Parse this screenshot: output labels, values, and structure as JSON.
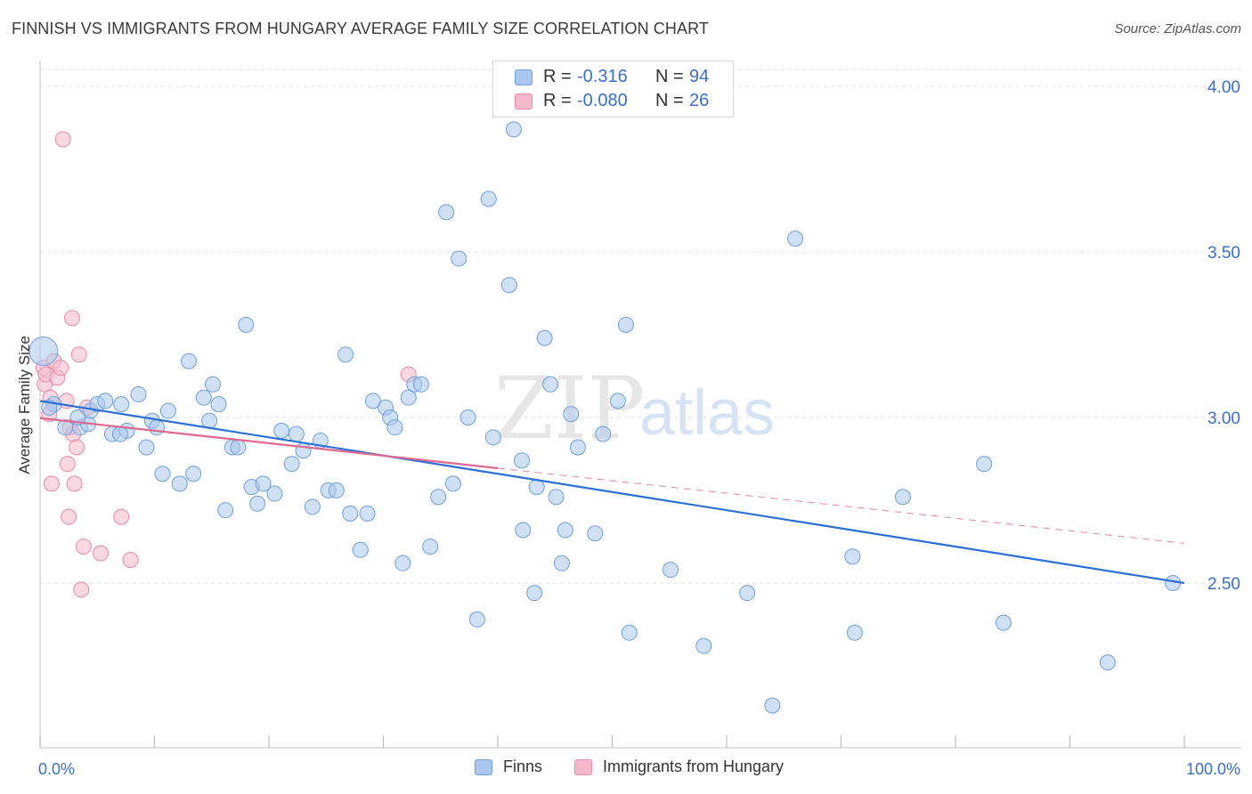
{
  "title": "FINNISH VS IMMIGRANTS FROM HUNGARY AVERAGE FAMILY SIZE CORRELATION CHART",
  "source": "Source: ZipAtlas.com",
  "watermark": {
    "zip": "ZIP",
    "atlas": "atlas"
  },
  "colors": {
    "finns_fill": "#aac8ef",
    "finns_stroke": "#6f9fdc",
    "finns_line": "#2a6fd6",
    "hungary_fill": "#f6b8cb",
    "hungary_stroke": "#e88aa8",
    "hungary_line": "#e0688f",
    "axis_text": "#3b6fc4",
    "grid": "#dedede"
  },
  "legend": {
    "r_label": "R =",
    "n_label": "N =",
    "entries": [
      {
        "name": "Finns",
        "r": "-0.316",
        "n": "94"
      },
      {
        "name": "Immigrants from Hungary",
        "r": "-0.080",
        "n": "26"
      }
    ]
  },
  "chart_data": {
    "type": "scatter",
    "title": "FINNISH VS IMMIGRANTS FROM HUNGARY AVERAGE FAMILY SIZE CORRELATION CHART",
    "xlabel": "",
    "ylabel": "Average Family Size",
    "xlim": [
      0,
      100
    ],
    "ylim": [
      2.03,
      4.07
    ],
    "x_tick_labels": [
      {
        "value": 0,
        "label": "0.0%"
      },
      {
        "value": 100,
        "label": "100.0%"
      }
    ],
    "y_ticks": [
      {
        "value": 2.5,
        "label": "2.50"
      },
      {
        "value": 3.0,
        "label": "3.00"
      },
      {
        "value": 3.5,
        "label": "3.50"
      },
      {
        "value": 4.0,
        "label": "4.00"
      }
    ],
    "grid": true,
    "legend_position": "top-center",
    "series": [
      {
        "name": "Finns",
        "trend": {
          "x": [
            0,
            100
          ],
          "y": [
            3.05,
            2.5
          ],
          "dashed_from": null
        },
        "points": [
          [
            0.3,
            3.2
          ],
          [
            1.2,
            3.04
          ],
          [
            2.2,
            2.97
          ],
          [
            3.5,
            2.97
          ],
          [
            4.2,
            2.98
          ],
          [
            4.4,
            3.02
          ],
          [
            5.0,
            3.04
          ],
          [
            6.3,
            2.95
          ],
          [
            5.7,
            3.05
          ],
          [
            7.1,
            3.04
          ],
          [
            8.6,
            3.07
          ],
          [
            7.6,
            2.96
          ],
          [
            9.3,
            2.91
          ],
          [
            9.8,
            2.99
          ],
          [
            10.2,
            2.97
          ],
          [
            10.7,
            2.83
          ],
          [
            11.2,
            3.02
          ],
          [
            12.2,
            2.8
          ],
          [
            13.0,
            3.17
          ],
          [
            13.4,
            2.83
          ],
          [
            14.3,
            3.06
          ],
          [
            14.8,
            2.99
          ],
          [
            15.1,
            3.1
          ],
          [
            15.6,
            3.04
          ],
          [
            16.2,
            2.72
          ],
          [
            16.8,
            2.91
          ],
          [
            17.3,
            2.91
          ],
          [
            18.0,
            3.28
          ],
          [
            18.5,
            2.79
          ],
          [
            19.0,
            2.74
          ],
          [
            19.5,
            2.8
          ],
          [
            20.5,
            2.77
          ],
          [
            21.1,
            2.96
          ],
          [
            22.0,
            2.86
          ],
          [
            22.4,
            2.95
          ],
          [
            23.0,
            2.9
          ],
          [
            23.8,
            2.73
          ],
          [
            24.5,
            2.93
          ],
          [
            25.2,
            2.78
          ],
          [
            25.9,
            2.78
          ],
          [
            26.7,
            3.19
          ],
          [
            27.1,
            2.71
          ],
          [
            28.0,
            2.6
          ],
          [
            28.6,
            2.71
          ],
          [
            29.1,
            3.05
          ],
          [
            30.2,
            3.03
          ],
          [
            30.6,
            3.0
          ],
          [
            31.0,
            2.97
          ],
          [
            31.7,
            2.56
          ],
          [
            32.2,
            3.06
          ],
          [
            32.7,
            3.1
          ],
          [
            33.3,
            3.1
          ],
          [
            34.1,
            2.61
          ],
          [
            34.8,
            2.76
          ],
          [
            35.5,
            3.62
          ],
          [
            36.1,
            2.8
          ],
          [
            36.6,
            3.48
          ],
          [
            37.4,
            3.0
          ],
          [
            38.2,
            2.39
          ],
          [
            39.2,
            3.66
          ],
          [
            39.6,
            2.94
          ],
          [
            41.0,
            3.4
          ],
          [
            41.4,
            3.87
          ],
          [
            42.1,
            2.87
          ],
          [
            42.2,
            2.66
          ],
          [
            43.2,
            2.47
          ],
          [
            43.4,
            2.79
          ],
          [
            44.1,
            3.24
          ],
          [
            44.6,
            3.1
          ],
          [
            45.1,
            2.76
          ],
          [
            45.6,
            2.56
          ],
          [
            45.9,
            2.66
          ],
          [
            46.4,
            3.01
          ],
          [
            47.0,
            2.91
          ],
          [
            48.5,
            2.65
          ],
          [
            49.2,
            2.95
          ],
          [
            50.5,
            3.05
          ],
          [
            51.2,
            3.28
          ],
          [
            51.5,
            2.35
          ],
          [
            55.1,
            2.54
          ],
          [
            58.0,
            2.31
          ],
          [
            61.8,
            2.47
          ],
          [
            64.0,
            2.13
          ],
          [
            66.0,
            3.54
          ],
          [
            71.0,
            2.58
          ],
          [
            71.2,
            2.35
          ],
          [
            75.4,
            2.76
          ],
          [
            82.5,
            2.86
          ],
          [
            84.2,
            2.38
          ],
          [
            93.3,
            2.26
          ],
          [
            99.0,
            2.5
          ],
          [
            0.8,
            3.03
          ],
          [
            3.3,
            3.0
          ],
          [
            7.0,
            2.95
          ]
        ]
      },
      {
        "name": "Immigrants from Hungary",
        "trend": {
          "x": [
            0,
            100
          ],
          "y": [
            2.998,
            2.62
          ],
          "solid_until": 40
        },
        "points": [
          [
            0.3,
            3.15
          ],
          [
            0.4,
            3.1
          ],
          [
            0.5,
            3.13
          ],
          [
            0.8,
            3.01
          ],
          [
            1.0,
            2.8
          ],
          [
            1.2,
            3.17
          ],
          [
            1.5,
            3.12
          ],
          [
            1.8,
            3.15
          ],
          [
            2.3,
            3.05
          ],
          [
            2.0,
            3.84
          ],
          [
            2.6,
            2.97
          ],
          [
            2.4,
            2.86
          ],
          [
            2.5,
            2.7
          ],
          [
            2.9,
            2.95
          ],
          [
            2.8,
            3.3
          ],
          [
            3.0,
            2.8
          ],
          [
            3.2,
            2.91
          ],
          [
            3.4,
            3.19
          ],
          [
            3.6,
            2.48
          ],
          [
            3.8,
            2.61
          ],
          [
            4.1,
            3.03
          ],
          [
            5.3,
            2.59
          ],
          [
            7.1,
            2.7
          ],
          [
            7.9,
            2.57
          ],
          [
            32.2,
            3.13
          ],
          [
            0.9,
            3.06
          ]
        ]
      }
    ]
  }
}
